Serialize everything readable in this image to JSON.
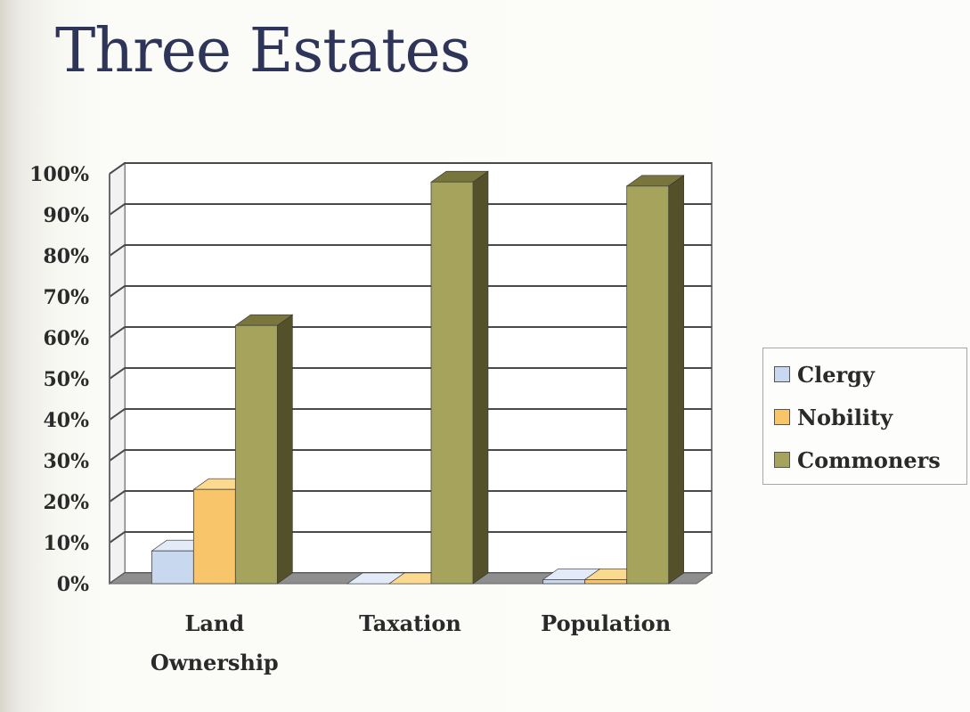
{
  "slide": {
    "title": "Three Estates"
  },
  "chart_data": {
    "type": "bar",
    "categories": [
      "Land Ownership",
      "Taxation",
      "Population"
    ],
    "category_lines": [
      [
        "Land",
        "Ownership"
      ],
      [
        "Taxation"
      ],
      [
        "Population"
      ]
    ],
    "series": [
      {
        "name": "Clergy",
        "values": [
          8,
          0,
          1
        ],
        "color": "#c8d8ee",
        "side": "#9db0cc",
        "top": "#e2ebf7"
      },
      {
        "name": "Nobility",
        "values": [
          23,
          0,
          1
        ],
        "color": "#f9c56a",
        "side": "#c9943a",
        "top": "#fbd98f"
      },
      {
        "name": "Commoners",
        "values": [
          63,
          98,
          97
        ],
        "color": "#a6a35d",
        "side": "#54512a",
        "top": "#78753d"
      }
    ],
    "yticks": [
      "0%",
      "10%",
      "20%",
      "30%",
      "40%",
      "50%",
      "60%",
      "70%",
      "80%",
      "90%",
      "100%"
    ],
    "ylim": [
      0,
      100
    ],
    "grid": true,
    "legend_position": "right",
    "xlabel": "",
    "ylabel": ""
  }
}
